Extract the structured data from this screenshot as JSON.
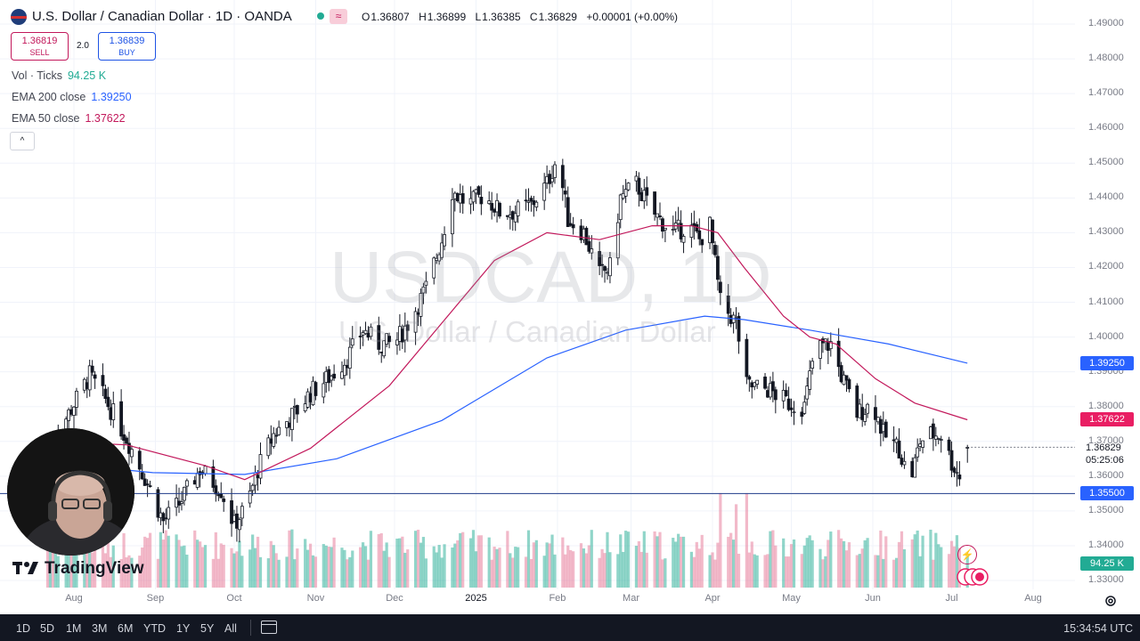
{
  "header": {
    "title": "U.S. Dollar / Canadian Dollar · 1D · OANDA",
    "status_icon": "≈",
    "ohlc": [
      {
        "label": "O",
        "value": "1.36807"
      },
      {
        "label": "H",
        "value": "1.36899"
      },
      {
        "label": "L",
        "value": "1.36385"
      },
      {
        "label": "C",
        "value": "1.36829"
      },
      {
        "label": "",
        "value": "+0.00001 (+0.00%)"
      }
    ]
  },
  "trade": {
    "sell_price": "1.36819",
    "sell_label": "SELL",
    "spread": "2.0",
    "buy_price": "1.36839",
    "buy_label": "BUY"
  },
  "indicators": {
    "vol_label": "Vol · Ticks",
    "vol_value": "94.25 K",
    "ema200_label": "EMA 200 close",
    "ema200_value": "1.39250",
    "ema50_label": "EMA 50 close",
    "ema50_value": "1.37622",
    "collapse_symbol": "^"
  },
  "watermark": {
    "symbol": "USDCAD, 1D",
    "name": "U.S. Dollar / Canadian Dollar"
  },
  "price_axis": {
    "labels": [
      "1.49000",
      "1.48000",
      "1.47000",
      "1.46000",
      "1.45000",
      "1.44000",
      "1.43000",
      "1.42000",
      "1.41000",
      "1.40000",
      "1.39000",
      "1.38000",
      "1.37000",
      "1.36000",
      "1.35000",
      "1.34000",
      "1.33000"
    ],
    "ema200_tag": "1.39250",
    "ema50_tag": "1.37622",
    "last_price": "1.36829",
    "countdown": "05:25:06",
    "hline_tag": "1.35500",
    "volume_tag": "94.25 K"
  },
  "time_axis": {
    "labels": [
      "Aug",
      "Sep",
      "Oct",
      "Nov",
      "Dec",
      "2025",
      "Feb",
      "Mar",
      "Apr",
      "May",
      "Jun",
      "Jul",
      "Aug"
    ]
  },
  "bottom_bar": {
    "ranges": [
      "1D",
      "5D",
      "1M",
      "3M",
      "6M",
      "YTD",
      "1Y",
      "5Y",
      "All"
    ],
    "clock": "15:34:54 UTC"
  },
  "branding": {
    "logo_text": "TradingView"
  },
  "colors": {
    "up": "#22ab94",
    "down": "#131722",
    "ema200": "#2962ff",
    "ema50": "#c2185b",
    "hline": "#1e3a8a",
    "ema200_tag_bg": "#2962ff",
    "ema50_tag_bg": "#e91e63",
    "hline_tag_bg": "#2962ff",
    "volume_tag_bg": "#22ab94"
  },
  "chart_data": {
    "type": "candlestick",
    "title": "USDCAD, 1D",
    "symbol": "U.S. Dollar / Canadian Dollar",
    "timeframe": "1D",
    "ylim": [
      1.325,
      1.495
    ],
    "x_range_days": [
      0,
      380
    ],
    "month_ticks": [
      {
        "label": "Aug",
        "day": 10
      },
      {
        "label": "Sep",
        "day": 41
      },
      {
        "label": "Oct",
        "day": 71
      },
      {
        "label": "Nov",
        "day": 102
      },
      {
        "label": "Dec",
        "day": 132
      },
      {
        "label": "2025",
        "day": 163
      },
      {
        "label": "Feb",
        "day": 194
      },
      {
        "label": "Mar",
        "day": 222
      },
      {
        "label": "Apr",
        "day": 253
      },
      {
        "label": "May",
        "day": 283
      },
      {
        "label": "Jun",
        "day": 314
      },
      {
        "label": "Jul",
        "day": 344
      },
      {
        "label": "Aug",
        "day": 375
      }
    ],
    "close_path": [
      {
        "day": 0,
        "close": 1.368
      },
      {
        "day": 8,
        "close": 1.378
      },
      {
        "day": 16,
        "close": 1.389
      },
      {
        "day": 22,
        "close": 1.382
      },
      {
        "day": 30,
        "close": 1.371
      },
      {
        "day": 38,
        "close": 1.358
      },
      {
        "day": 44,
        "close": 1.347
      },
      {
        "day": 50,
        "close": 1.352
      },
      {
        "day": 58,
        "close": 1.362
      },
      {
        "day": 66,
        "close": 1.356
      },
      {
        "day": 71,
        "close": 1.346
      },
      {
        "day": 76,
        "close": 1.352
      },
      {
        "day": 80,
        "close": 1.362
      },
      {
        "day": 86,
        "close": 1.372
      },
      {
        "day": 94,
        "close": 1.378
      },
      {
        "day": 100,
        "close": 1.384
      },
      {
        "day": 108,
        "close": 1.389
      },
      {
        "day": 114,
        "close": 1.394
      },
      {
        "day": 120,
        "close": 1.402
      },
      {
        "day": 126,
        "close": 1.398
      },
      {
        "day": 132,
        "close": 1.398
      },
      {
        "day": 138,
        "close": 1.405
      },
      {
        "day": 144,
        "close": 1.414
      },
      {
        "day": 150,
        "close": 1.428
      },
      {
        "day": 154,
        "close": 1.442
      },
      {
        "day": 160,
        "close": 1.438
      },
      {
        "day": 166,
        "close": 1.441
      },
      {
        "day": 172,
        "close": 1.436
      },
      {
        "day": 178,
        "close": 1.436
      },
      {
        "day": 184,
        "close": 1.438
      },
      {
        "day": 190,
        "close": 1.444
      },
      {
        "day": 194,
        "close": 1.452
      },
      {
        "day": 198,
        "close": 1.434
      },
      {
        "day": 204,
        "close": 1.43
      },
      {
        "day": 210,
        "close": 1.418
      },
      {
        "day": 214,
        "close": 1.42
      },
      {
        "day": 218,
        "close": 1.44
      },
      {
        "day": 224,
        "close": 1.444
      },
      {
        "day": 230,
        "close": 1.436
      },
      {
        "day": 238,
        "close": 1.43
      },
      {
        "day": 244,
        "close": 1.432
      },
      {
        "day": 248,
        "close": 1.428
      },
      {
        "day": 252,
        "close": 1.432
      },
      {
        "day": 256,
        "close": 1.41
      },
      {
        "day": 262,
        "close": 1.404
      },
      {
        "day": 266,
        "close": 1.386
      },
      {
        "day": 274,
        "close": 1.385
      },
      {
        "day": 282,
        "close": 1.381
      },
      {
        "day": 288,
        "close": 1.38
      },
      {
        "day": 292,
        "close": 1.397
      },
      {
        "day": 298,
        "close": 1.398
      },
      {
        "day": 302,
        "close": 1.389
      },
      {
        "day": 308,
        "close": 1.378
      },
      {
        "day": 314,
        "close": 1.381
      },
      {
        "day": 318,
        "close": 1.372
      },
      {
        "day": 324,
        "close": 1.368
      },
      {
        "day": 328,
        "close": 1.358
      },
      {
        "day": 332,
        "close": 1.37
      },
      {
        "day": 336,
        "close": 1.372
      },
      {
        "day": 340,
        "close": 1.372
      },
      {
        "day": 344,
        "close": 1.364
      },
      {
        "day": 347,
        "close": 1.36
      },
      {
        "day": 350,
        "close": 1.3683
      }
    ],
    "ema50": [
      {
        "day": 0,
        "close": 1.37
      },
      {
        "day": 30,
        "close": 1.369
      },
      {
        "day": 60,
        "close": 1.363
      },
      {
        "day": 75,
        "close": 1.359
      },
      {
        "day": 100,
        "close": 1.368
      },
      {
        "day": 130,
        "close": 1.386
      },
      {
        "day": 150,
        "close": 1.404
      },
      {
        "day": 170,
        "close": 1.422
      },
      {
        "day": 190,
        "close": 1.43
      },
      {
        "day": 210,
        "close": 1.428
      },
      {
        "day": 230,
        "close": 1.432
      },
      {
        "day": 245,
        "close": 1.432
      },
      {
        "day": 255,
        "close": 1.43
      },
      {
        "day": 265,
        "close": 1.42
      },
      {
        "day": 280,
        "close": 1.406
      },
      {
        "day": 290,
        "close": 1.4
      },
      {
        "day": 300,
        "close": 1.398
      },
      {
        "day": 315,
        "close": 1.388
      },
      {
        "day": 330,
        "close": 1.381
      },
      {
        "day": 350,
        "close": 1.37622
      }
    ],
    "ema200": [
      {
        "day": 0,
        "close": 1.364
      },
      {
        "day": 40,
        "close": 1.361
      },
      {
        "day": 75,
        "close": 1.3605
      },
      {
        "day": 110,
        "close": 1.365
      },
      {
        "day": 150,
        "close": 1.376
      },
      {
        "day": 190,
        "close": 1.394
      },
      {
        "day": 220,
        "close": 1.402
      },
      {
        "day": 250,
        "close": 1.406
      },
      {
        "day": 265,
        "close": 1.405
      },
      {
        "day": 290,
        "close": 1.402
      },
      {
        "day": 320,
        "close": 1.398
      },
      {
        "day": 350,
        "close": 1.3925
      }
    ],
    "horizontal_line": 1.355,
    "last": {
      "open": 1.36807,
      "high": 1.36899,
      "low": 1.36385,
      "close": 1.36829,
      "change": 1e-05,
      "change_pct": 0.0
    },
    "volume_last": "94.25 K",
    "volume_spikes": [
      {
        "day": 194,
        "rel": 0.62
      },
      {
        "day": 256,
        "rel": 0.68
      },
      {
        "day": 262,
        "rel": 0.6
      },
      {
        "day": 266,
        "rel": 0.68
      }
    ],
    "legend": [
      "EMA 200 close 1.39250",
      "EMA 50 close 1.37622"
    ]
  }
}
